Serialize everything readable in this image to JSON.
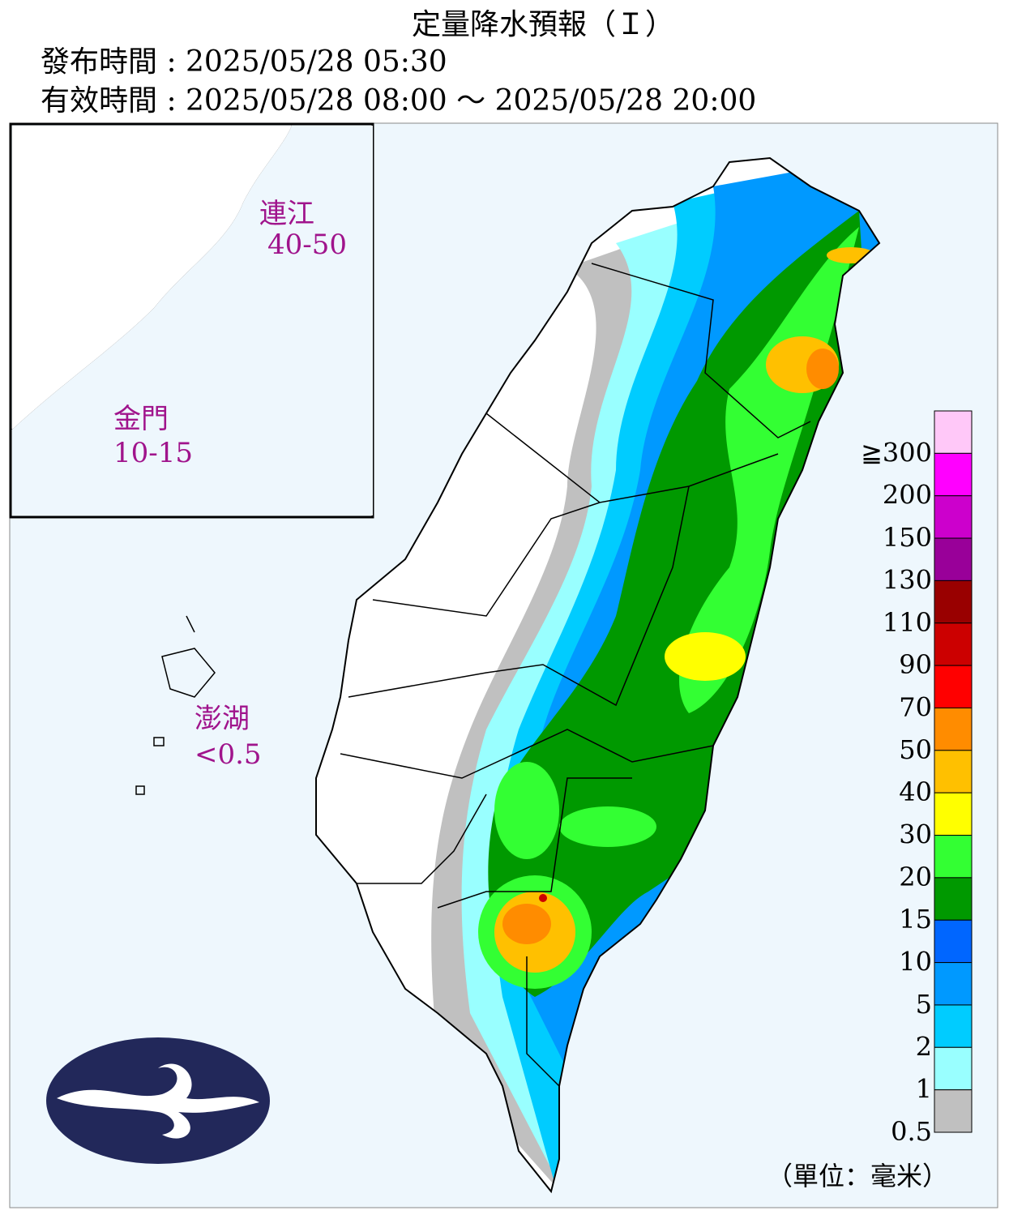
{
  "header": {
    "title": "定量降水預報（Ｉ）",
    "issued": "發布時間 : 2025/05/28 05:30",
    "valid": "有效時間 : 2025/05/28 08:00 ～ 2025/05/28 20:00"
  },
  "islands": [
    {
      "name": "連江",
      "range": "40-50"
    },
    {
      "name": "金門",
      "range": "10-15"
    },
    {
      "name": "澎湖",
      "range": "<0.5"
    }
  ],
  "legend": {
    "labels": [
      "≧300",
      "200",
      "150",
      "130",
      "110",
      "90",
      "70",
      "50",
      "40",
      "30",
      "20",
      "15",
      "10",
      "5",
      "2",
      "1",
      "0.5"
    ],
    "colors": [
      "#ffc8f8",
      "#ff00ff",
      "#cc00cc",
      "#990099",
      "#990000",
      "#cc0000",
      "#ff0000",
      "#ff8c00",
      "#ffc000",
      "#ffff00",
      "#33ff33",
      "#009900",
      "#0066ff",
      "#0099ff",
      "#00ccff",
      "#99ffff",
      "#c0c0c0"
    ],
    "unit": "（單位：毫米）"
  }
}
